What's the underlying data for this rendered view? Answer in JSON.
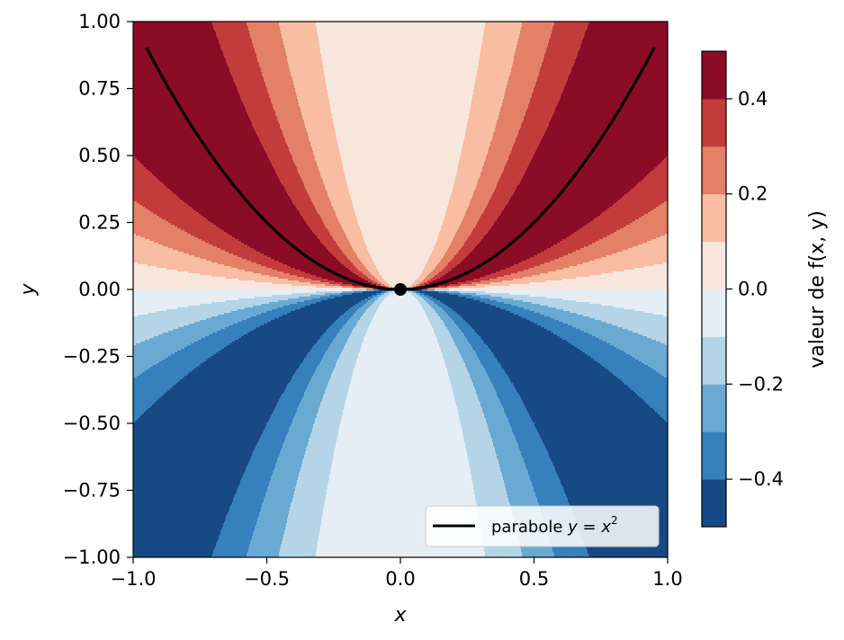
{
  "chart_data": {
    "type": "heatmap",
    "title": "",
    "function": "f(x, y) = x^2 y / (x^4 + y^2), f(0, 0) = 0",
    "xlabel": "x",
    "ylabel": "y",
    "xlim": [
      -1.0,
      1.0
    ],
    "ylim": [
      -1.0,
      1.0
    ],
    "x_ticks": [
      "−1.0",
      "−0.5",
      "0.0",
      "0.5",
      "1.0"
    ],
    "x_tick_values": [
      -1.0,
      -0.5,
      0.0,
      0.5,
      1.0
    ],
    "y_ticks": [
      "1.00",
      "0.75",
      "0.50",
      "0.25",
      "0.00",
      "−0.25",
      "−0.50",
      "−0.75",
      "−1.00"
    ],
    "y_tick_values": [
      1.0,
      0.75,
      0.5,
      0.25,
      0.0,
      -0.25,
      -0.5,
      -0.75,
      -1.0
    ],
    "contour_levels": [
      -0.5,
      -0.4,
      -0.3,
      -0.2,
      -0.1,
      0.0,
      0.1,
      0.2,
      0.3,
      0.4,
      0.5
    ],
    "colormap": "RdBu_r",
    "band_colors": [
      "#174a85",
      "#3680bb",
      "#6aaad2",
      "#b4d5e8",
      "#e5eef5",
      "#f8e6dd",
      "#f8bda3",
      "#e38067",
      "#c23c3b",
      "#8b0c27"
    ],
    "colorbar": {
      "label": "valeur de f(x, y)",
      "range": [
        -0.5,
        0.5
      ],
      "ticks": [
        "−0.4",
        "−0.2",
        "0.0",
        "0.2",
        "0.4"
      ],
      "tick_values": [
        -0.4,
        -0.2,
        0.0,
        0.2,
        0.4
      ]
    },
    "series": [
      {
        "name": "parabole y = x²",
        "type": "line",
        "x_range": [
          -0.95,
          0.95
        ],
        "equation": "y = x^2",
        "color": "#000000"
      }
    ],
    "highlight_point": {
      "x": 0.0,
      "y": 0.0,
      "color": "#000000"
    },
    "legend": {
      "position": "lower-right",
      "prefix": "parabole ",
      "eq_lhs": "y",
      "eq_op": " = ",
      "eq_rhs": "x",
      "eq_exp": "2"
    },
    "grid": false
  }
}
